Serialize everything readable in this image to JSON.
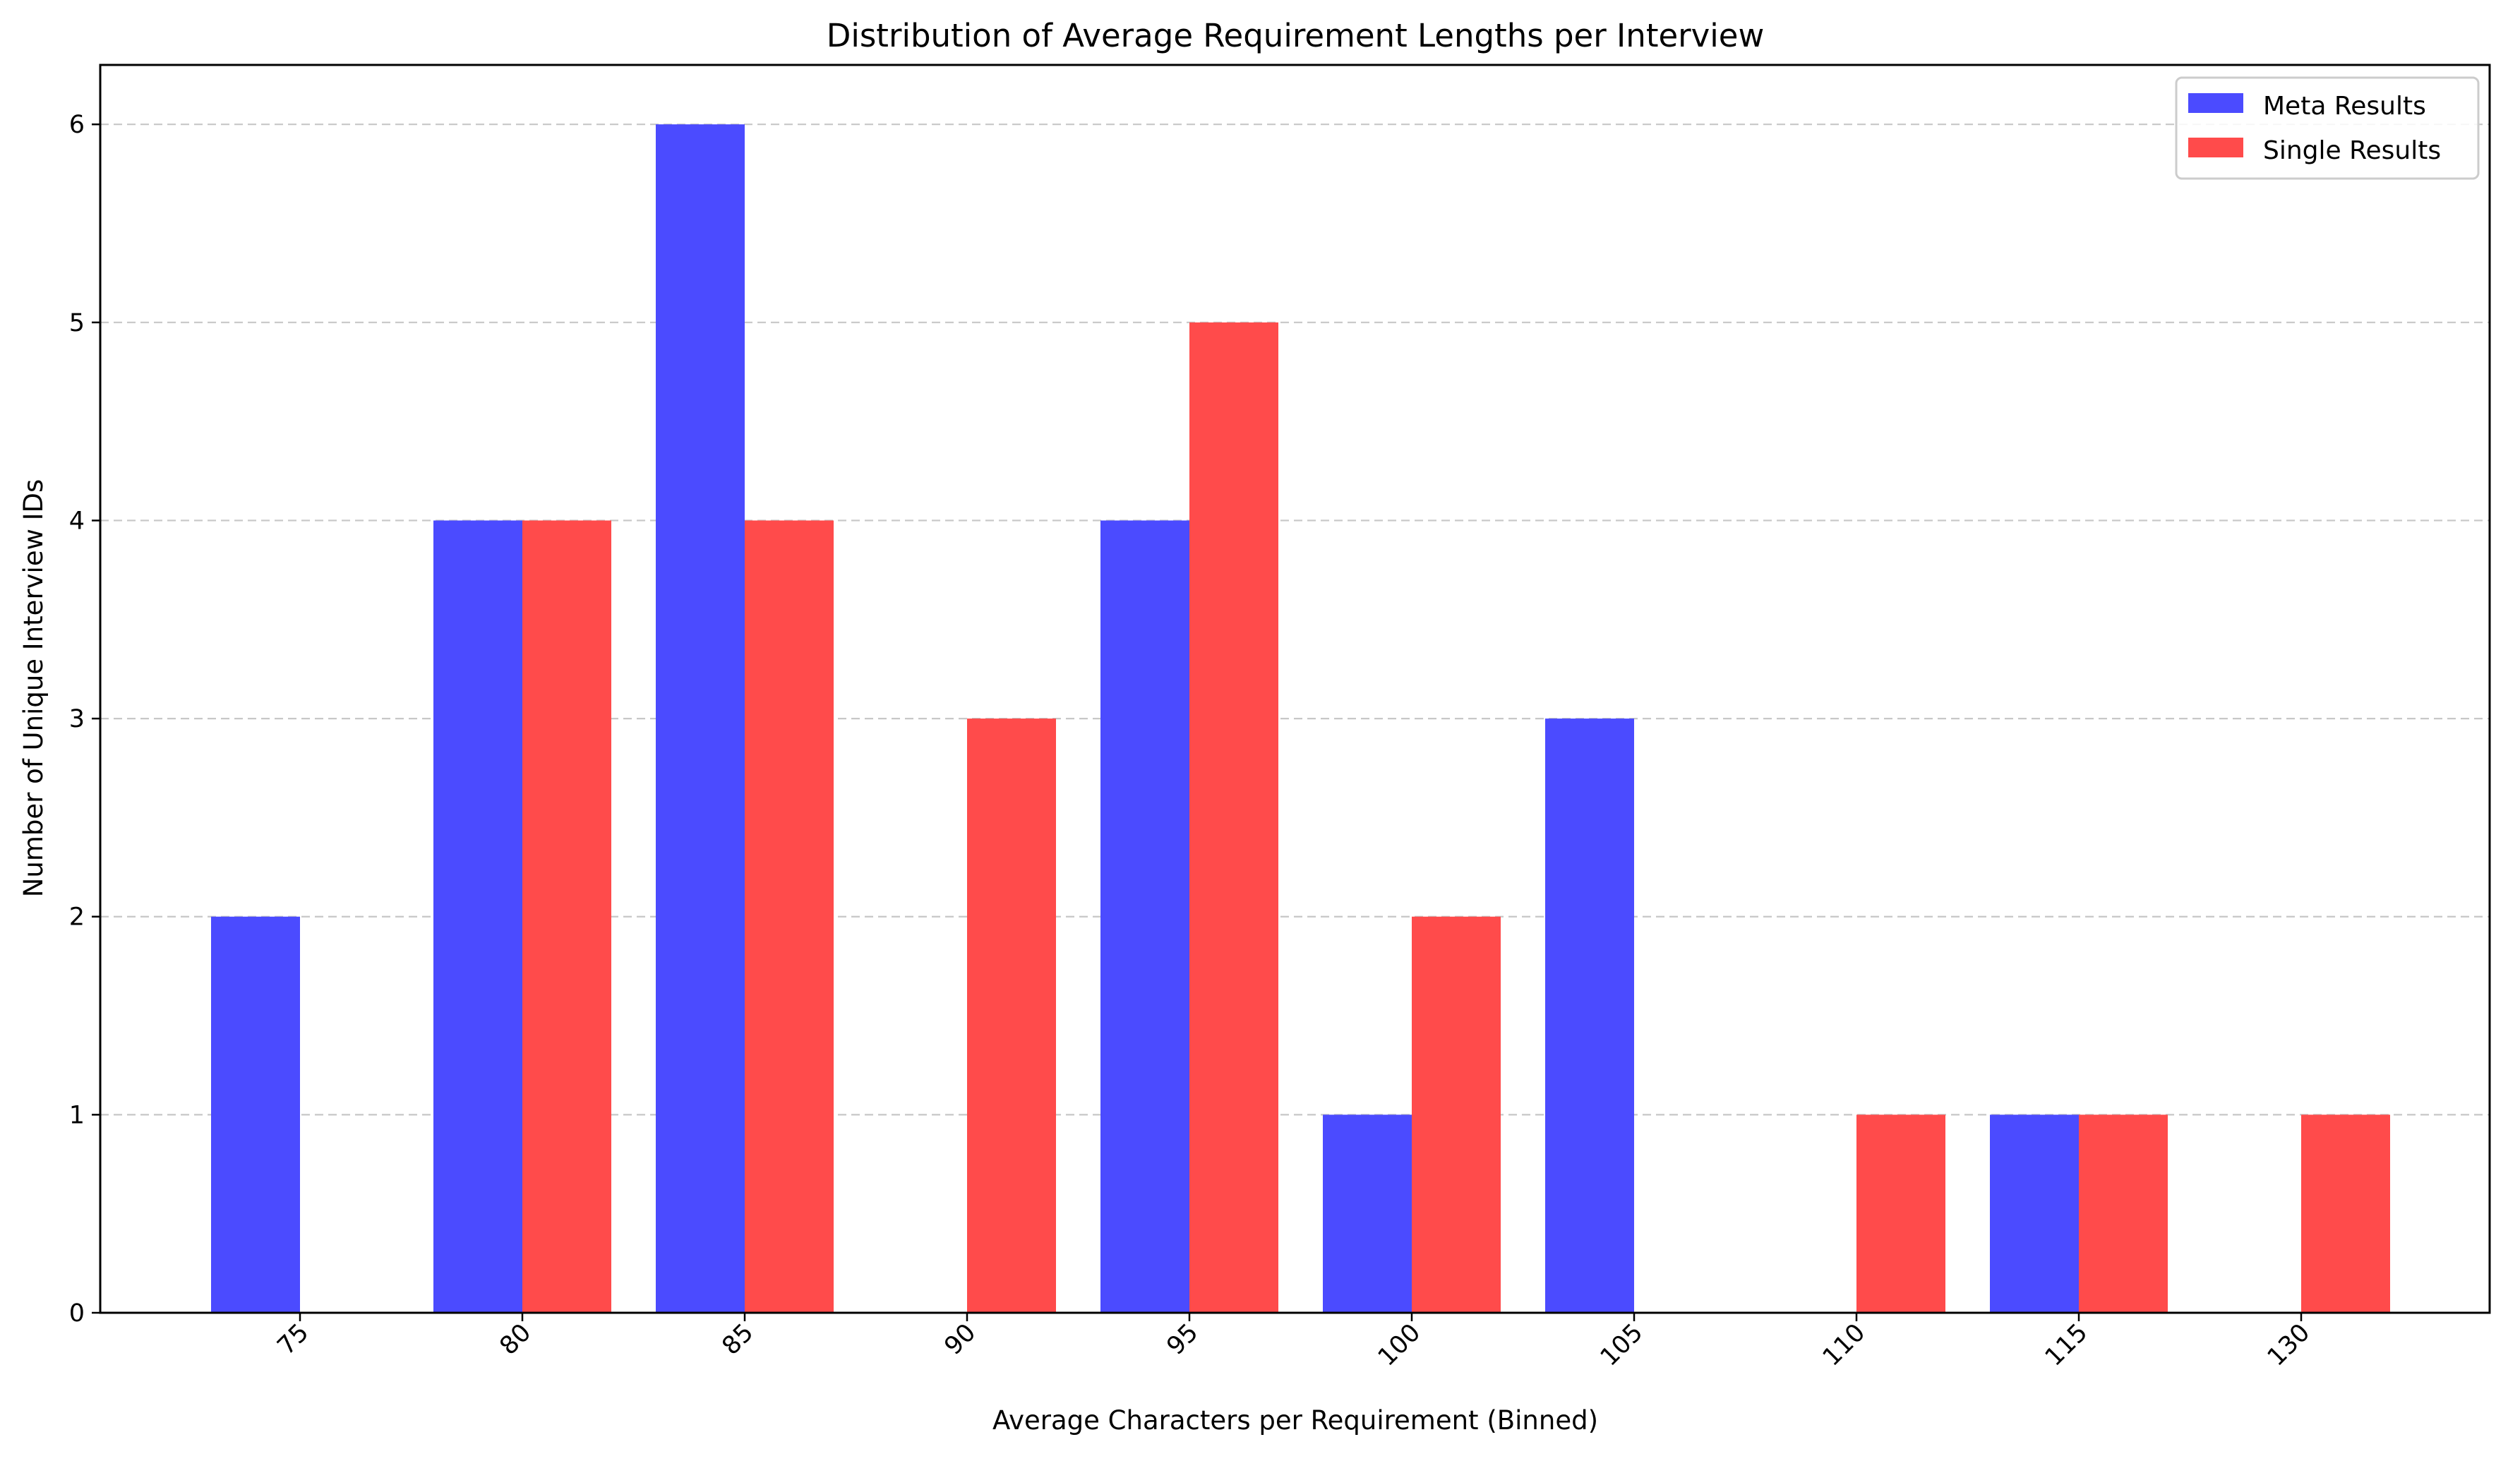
{
  "chart_data": {
    "type": "bar",
    "title": "Distribution of Average Requirement Lengths per Interview",
    "xlabel": "Average Characters per Requirement (Binned)",
    "ylabel": "Number of Unique Interview IDs",
    "categories": [
      "75",
      "80",
      "85",
      "90",
      "95",
      "100",
      "105",
      "110",
      "115",
      "130"
    ],
    "series": [
      {
        "name": "Meta Results",
        "color": "#4b4bff",
        "values": [
          2,
          4,
          6,
          0,
          4,
          1,
          3,
          0,
          1,
          0
        ]
      },
      {
        "name": "Single Results",
        "color": "#ff4b4b",
        "values": [
          0,
          4,
          4,
          3,
          5,
          2,
          0,
          1,
          1,
          1
        ]
      }
    ],
    "ylim": [
      0,
      6.3
    ],
    "yticks": [
      0,
      1,
      2,
      3,
      4,
      5,
      6
    ],
    "grid": "y-dashed",
    "legend": "top-right"
  }
}
